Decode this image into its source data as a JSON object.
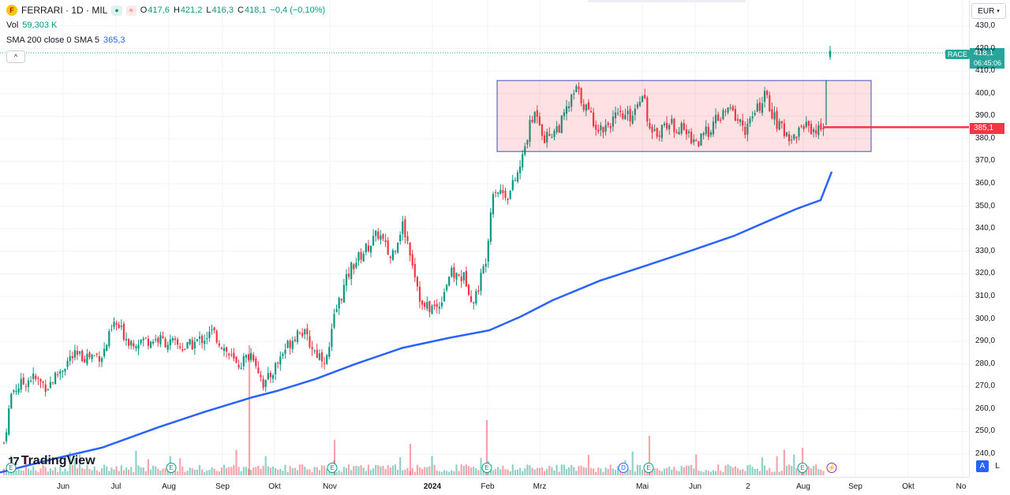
{
  "header": {
    "symbol": "FERRARI · 1D · MIL",
    "open_label": "O",
    "open": "417,6",
    "high_label": "H",
    "high": "421,2",
    "low_label": "L",
    "low": "416,3",
    "close_label": "C",
    "close": "418,1",
    "change": "−0,4 (−0,10%)",
    "vol_label": "Vol",
    "vol_value": "59,303 K",
    "indicator_label": "SMA 200 close 0 SMA 5",
    "indicator_value": "365,3",
    "collapse_glyph": "^"
  },
  "price_axis": {
    "currency": "EUR",
    "ticks": [
      "430,0",
      "420,0",
      "410,0",
      "400,0",
      "390,0",
      "380,0",
      "370,0",
      "360,0",
      "350,0",
      "340,0",
      "330,0",
      "320,0",
      "310,0",
      "300,0",
      "290,0",
      "280,0",
      "270,0",
      "260,0",
      "250,0",
      "240,0"
    ],
    "current_price": "418,1",
    "countdown": "06:45:06",
    "ticker": "RACE",
    "line_price": "385,1"
  },
  "time_axis": {
    "labels": [
      "Jun",
      "Jul",
      "Aug",
      "Sep",
      "Okt",
      "Nov",
      "2024",
      "Feb",
      "Mrz",
      "Mai",
      "Jun",
      "2",
      "Aug",
      "Sep",
      "Okt",
      "No"
    ]
  },
  "watermark": "TradingView",
  "events": [
    "E",
    "E",
    "E",
    "E",
    "D",
    "E",
    "E",
    "E"
  ],
  "axis_buttons": {
    "auto": "A",
    "log": "L"
  },
  "colors": {
    "up": "#089981",
    "down": "#f23645",
    "sma": "#2962ff",
    "rect_fill": "rgba(242,54,69,0.15)",
    "rect_border": "#3f51b5",
    "hline": "#f23645"
  },
  "chart_data": {
    "type": "candlestick",
    "symbol": "FERRARI",
    "interval": "1D",
    "ylim": [
      235,
      435
    ],
    "series": [
      {
        "name": "SMA 200",
        "points": [
          [
            0,
            231.8
          ],
          [
            70,
            238
          ],
          [
            130,
            242.9
          ],
          [
            200,
            251.8
          ],
          [
            260,
            258.8
          ],
          [
            320,
            265.2
          ],
          [
            350,
            267.9
          ],
          [
            400,
            273.3
          ],
          [
            450,
            279.9
          ],
          [
            510,
            287.1
          ],
          [
            570,
            291.6
          ],
          [
            620,
            294.9
          ],
          [
            660,
            301.0
          ],
          [
            700,
            308.2
          ],
          [
            760,
            316.9
          ],
          [
            820,
            323.8
          ],
          [
            880,
            330.8
          ],
          [
            930,
            336.8
          ],
          [
            970,
            342.9
          ],
          [
            1010,
            348.9
          ],
          [
            1040,
            352.7
          ],
          [
            1054,
            365.3
          ]
        ]
      }
    ],
    "rectangle": {
      "low": 374.3,
      "high": 405.8
    },
    "horizontal_line": 385.1,
    "last_close": 418.1
  }
}
